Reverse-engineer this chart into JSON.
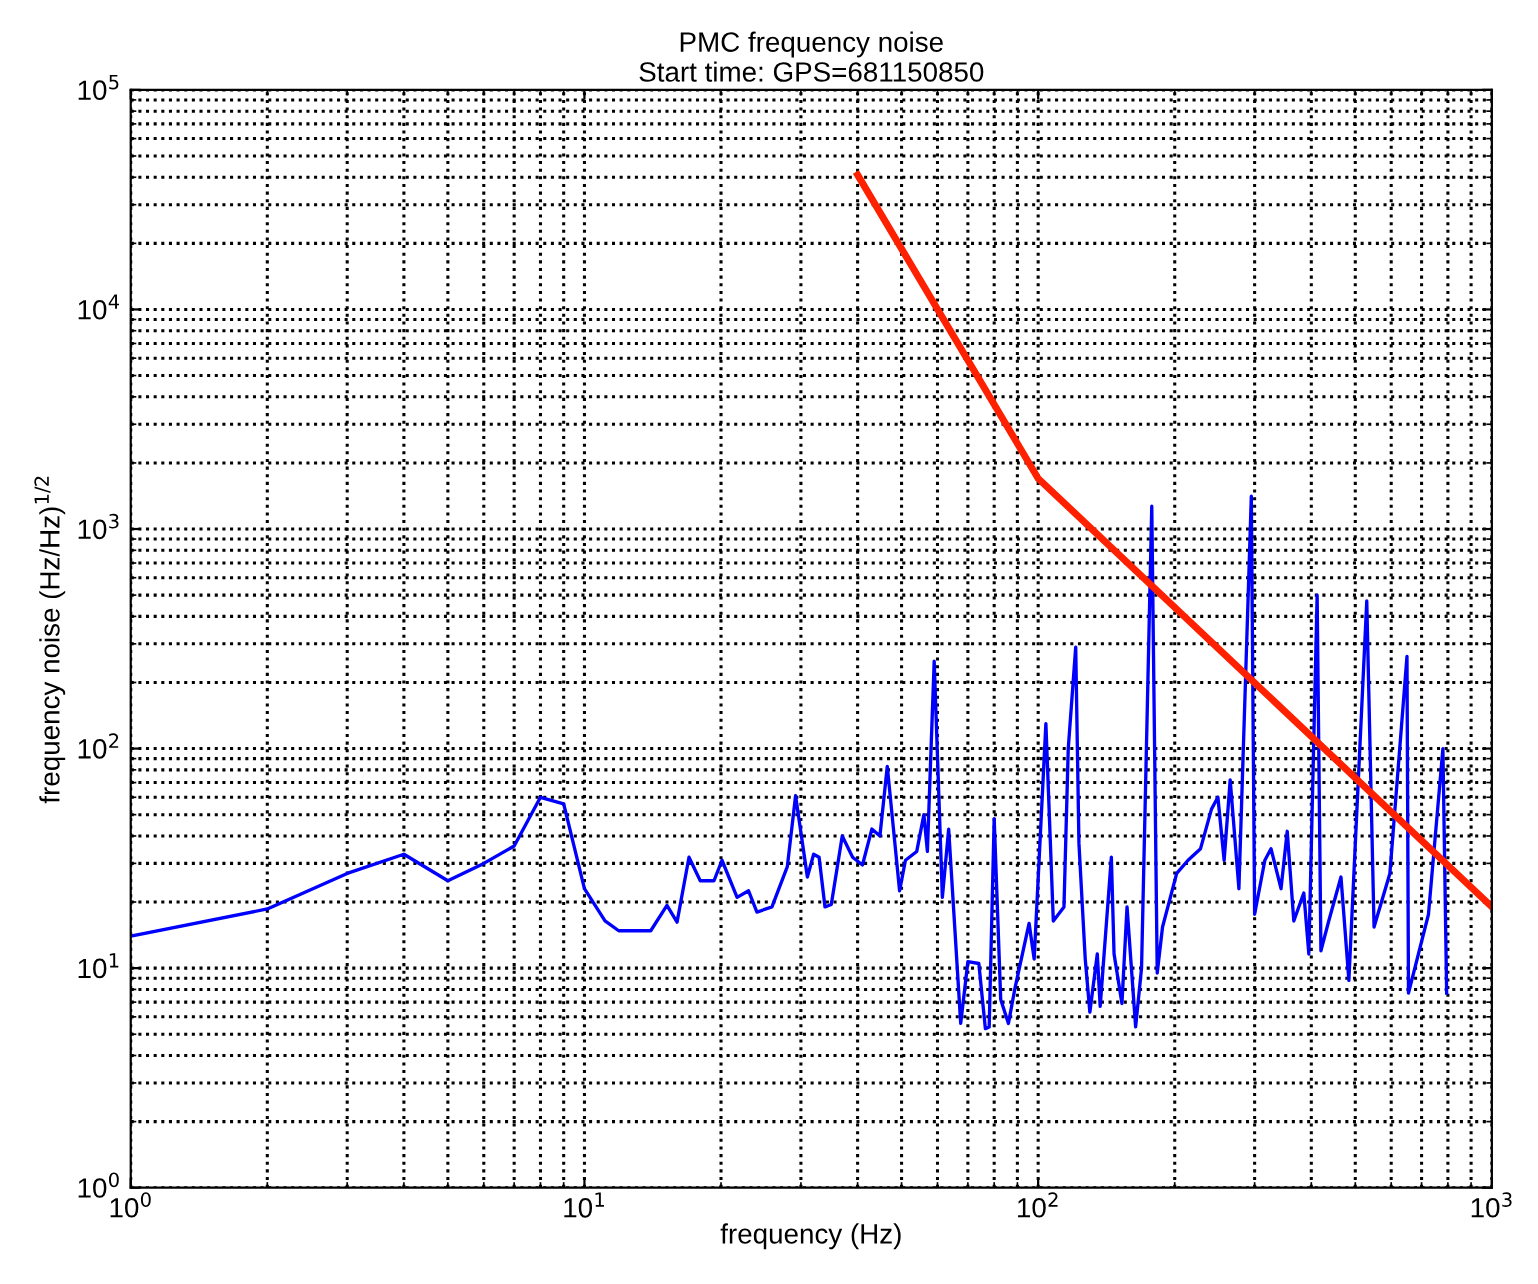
{
  "chart_data": {
    "type": "line",
    "title": "PMC frequency noise",
    "subtitle": "Start time: GPS=681150850",
    "xlabel": "frequency (Hz)",
    "ylabel": "frequency noise (Hz/Hz)$^{1/2}$",
    "log": "xy",
    "grid": true,
    "marker": "none",
    "line_style": "solid",
    "xlim": [
      1,
      1000
    ],
    "ylim": [
      1,
      100000
    ],
    "xticks": [
      {
        "value": 1,
        "label": "10$^{0}$"
      },
      {
        "value": 10,
        "label": "10$^{1}$"
      },
      {
        "value": 100,
        "label": "10$^{2}$"
      },
      {
        "value": 1000,
        "label": "10$^{3}$"
      }
    ],
    "yticks": [
      {
        "value": 1,
        "label": "10$^{0}$"
      },
      {
        "value": 10,
        "label": "10$^{1}$"
      },
      {
        "value": 100,
        "label": "10$^{2}$"
      },
      {
        "value": 1000,
        "label": "10$^{3}$"
      },
      {
        "value": 10000,
        "label": "10$^{4}$"
      },
      {
        "value": 100000,
        "label": "10$^{5}$"
      }
    ],
    "series": [
      {
        "color": "#0000ff",
        "x": [
          1,
          2,
          3,
          4,
          5,
          6,
          7,
          8,
          9,
          10,
          11.1,
          11.9,
          14,
          15.2,
          16,
          17,
          18,
          19.3,
          20.1,
          21.7,
          23,
          24,
          25.9,
          28,
          29.2,
          31,
          32,
          32.9,
          33.9,
          35,
          37,
          39,
          41,
          43,
          44.8,
          46.5,
          49.5,
          51,
          54,
          56,
          57,
          59,
          61.5,
          63.5,
          67.5,
          70,
          74,
          76.5,
          78,
          80,
          82.7,
          86,
          89,
          95.5,
          98,
          104,
          108,
          114,
          116.5,
          121,
          123,
          127,
          130,
          135,
          137,
          145,
          147,
          153,
          157,
          164,
          169,
          178,
          183,
          188,
          202,
          214,
          228,
          241,
          249,
          257,
          265,
          277,
          295,
          300,
          316,
          326,
          343,
          354,
          366,
          385,
          395,
          412,
          420,
          437,
          465,
          484,
          530,
          550,
          596,
          650,
          655,
          725,
          780,
          795
        ],
        "values": [
          14,
          18.6,
          27,
          33,
          25,
          30,
          36,
          60,
          56,
          23,
          16.4,
          14.8,
          14.8,
          19.3,
          16.2,
          32,
          25,
          25,
          31,
          21,
          22.5,
          18,
          19,
          29,
          61,
          26,
          33,
          32,
          19,
          19.5,
          40,
          32,
          29.5,
          43,
          40,
          83,
          22.5,
          31,
          34,
          50,
          34,
          250,
          21,
          43,
          5.6,
          10.7,
          10.5,
          5.3,
          5.4,
          48,
          7.2,
          5.6,
          8.2,
          16,
          11,
          130,
          16.4,
          19,
          100,
          290,
          37,
          11,
          6.3,
          11.6,
          6.7,
          32,
          11.6,
          6.9,
          19,
          5.4,
          10,
          1270,
          9.5,
          15.4,
          27,
          31,
          35,
          53,
          60,
          31,
          72,
          23,
          1410,
          17.6,
          31,
          35,
          23,
          42,
          16.4,
          22,
          11.6,
          500,
          12,
          16.4,
          26,
          8.8,
          470,
          15.4,
          27,
          263,
          7.7,
          17.6,
          100,
          7.7
        ]
      },
      {
        "color": "#ff2000",
        "x": [
          40,
          100,
          1000
        ],
        "values": [
          41000,
          1700,
          19
        ]
      }
    ]
  }
}
